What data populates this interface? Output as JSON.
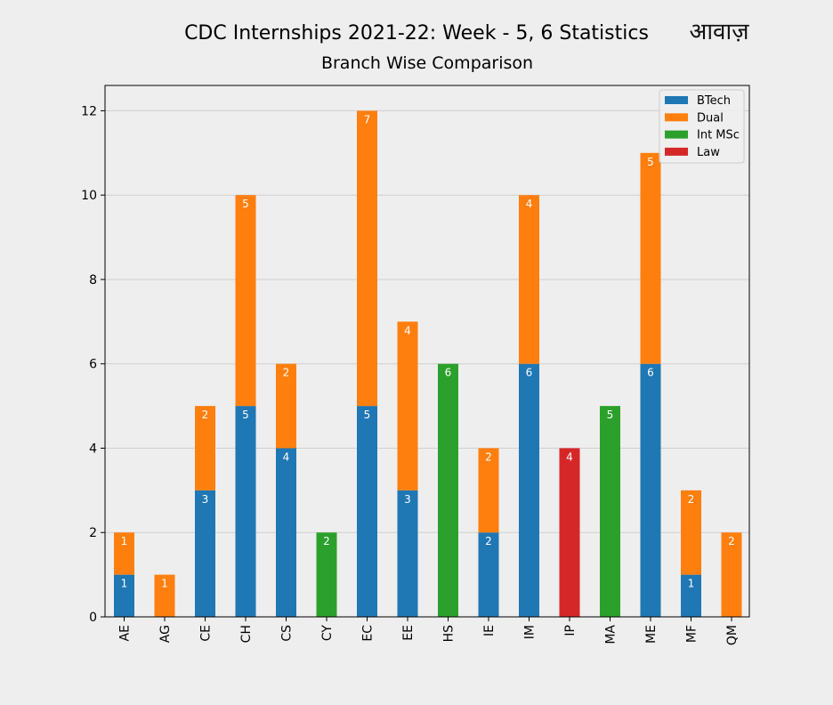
{
  "chart_data": {
    "type": "bar",
    "stacked": true,
    "title": "CDC Internships 2021-22: Week - 5, 6 Statistics",
    "subtitle": "Branch Wise Comparison",
    "xlabel": "",
    "ylabel": "",
    "ylim": [
      0,
      12.6
    ],
    "yticks": [
      0,
      2,
      4,
      6,
      8,
      10,
      12
    ],
    "grid": true,
    "legend_position": "top-right",
    "categories": [
      "AE",
      "AG",
      "CE",
      "CH",
      "CS",
      "CY",
      "EC",
      "EE",
      "HS",
      "IE",
      "IM",
      "IP",
      "MA",
      "ME",
      "MF",
      "QM"
    ],
    "series": [
      {
        "name": "BTech",
        "color": "#1f77b4",
        "values": [
          1,
          0,
          3,
          5,
          4,
          0,
          5,
          3,
          0,
          2,
          6,
          0,
          0,
          6,
          1,
          0
        ]
      },
      {
        "name": "Dual",
        "color": "#ff7f0e",
        "values": [
          1,
          1,
          2,
          5,
          2,
          0,
          7,
          4,
          0,
          2,
          4,
          0,
          0,
          5,
          2,
          2
        ]
      },
      {
        "name": "Int MSc",
        "color": "#2ca02c",
        "values": [
          0,
          0,
          0,
          0,
          0,
          2,
          0,
          0,
          6,
          0,
          0,
          0,
          5,
          0,
          0,
          0
        ]
      },
      {
        "name": "Law",
        "color": "#d62728",
        "values": [
          0,
          0,
          0,
          0,
          0,
          0,
          0,
          0,
          0,
          0,
          0,
          4,
          0,
          0,
          0,
          0
        ]
      }
    ]
  },
  "logo": {
    "text": "आवाज़"
  }
}
